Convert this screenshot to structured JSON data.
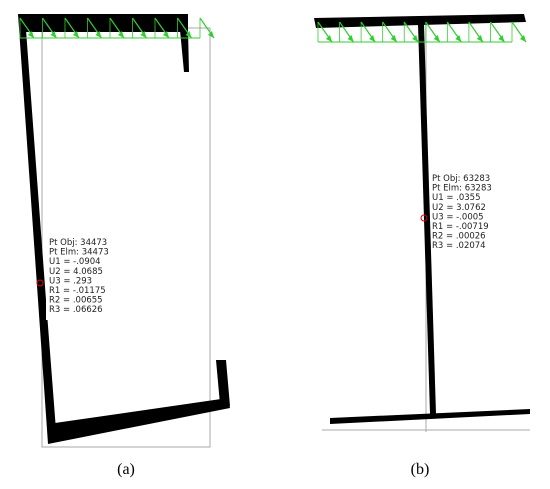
{
  "panels": [
    {
      "label": "(a)",
      "info": [
        "Pt Obj: 34473",
        "Pt Elm: 34473",
        "U1 = -.0904",
        "U2 = 4.0685",
        "U3 = .293",
        "R1 = -.01175",
        "R2 = .00655",
        "R3 = .06626"
      ]
    },
    {
      "label": "(b)",
      "info": [
        "Pt Obj: 63283",
        "Pt Elm: 63283",
        "U1 = .0355",
        "U2 = 3.0762",
        "U3 = -.0005",
        "R1 = -.00719",
        "R2 = .00026",
        "R3 = .02074"
      ]
    }
  ]
}
